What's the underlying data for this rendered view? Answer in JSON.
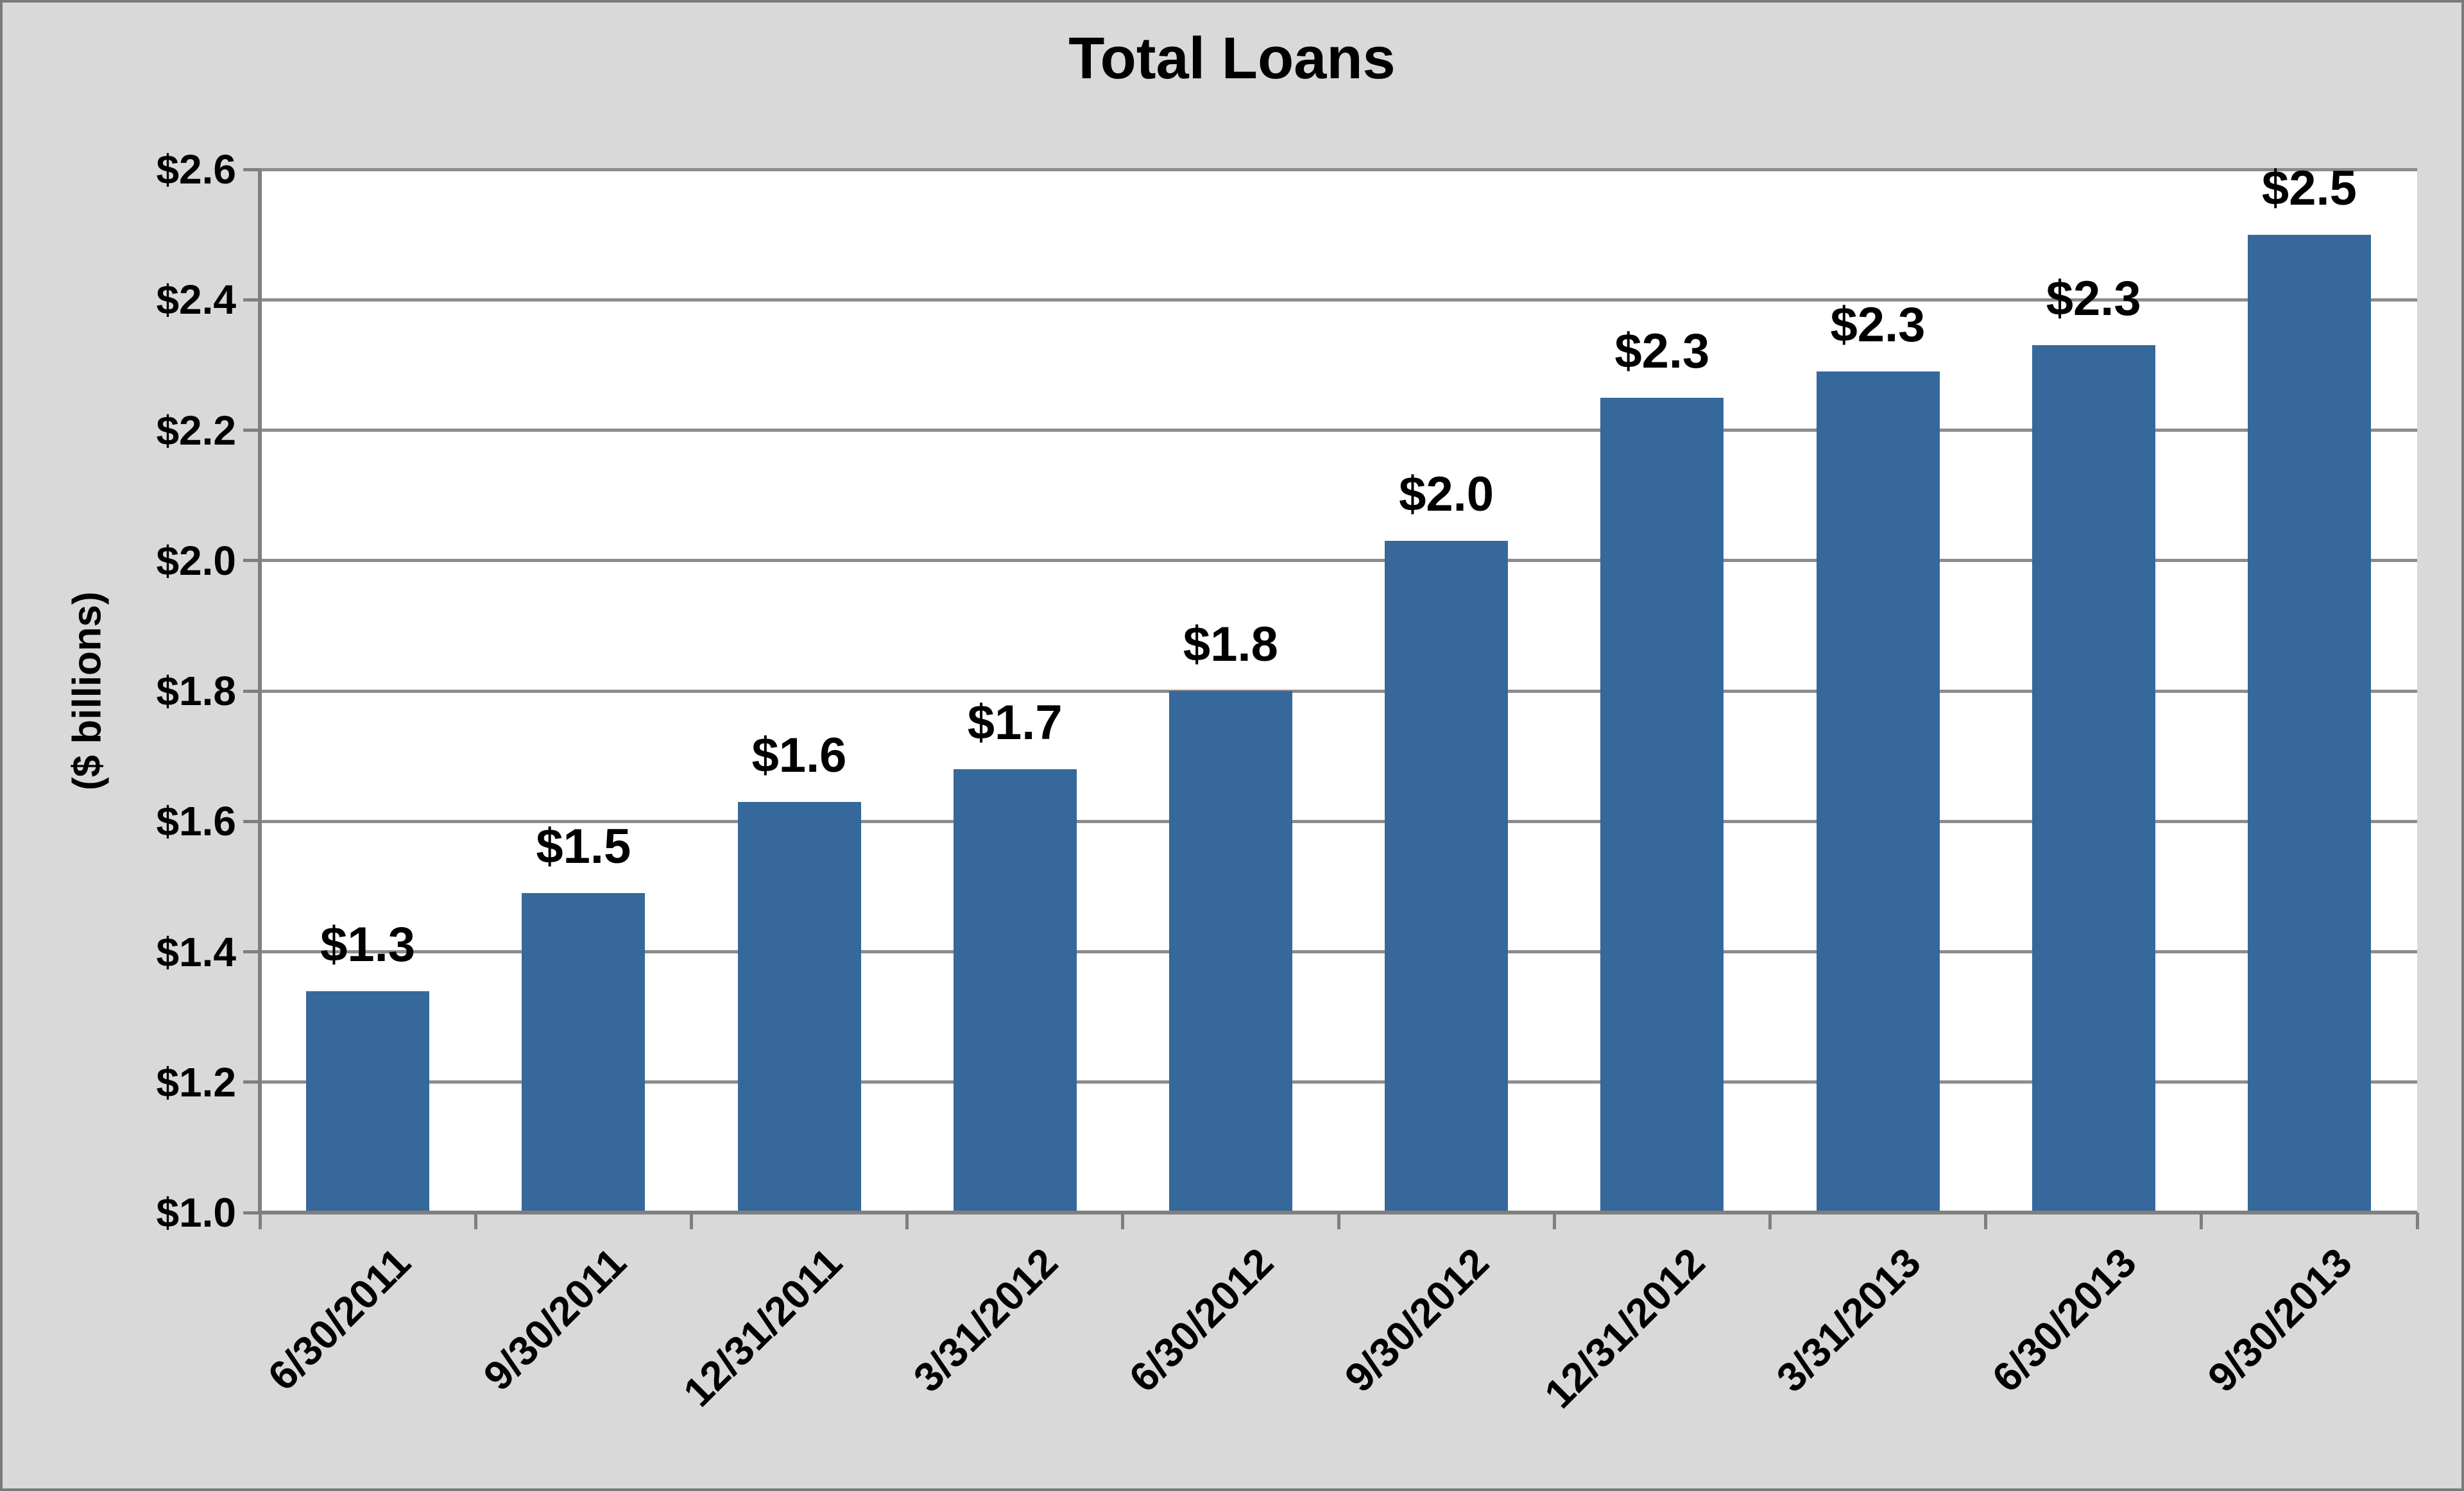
{
  "chart_data": {
    "type": "bar",
    "title": "Total Loans",
    "ylabel": "($ billions)",
    "xlabel": "",
    "categories": [
      "6/30/2011",
      "9/30/2011",
      "12/31/2011",
      "3/31/2012",
      "6/30/2012",
      "9/30/2012",
      "12/31/2012",
      "3/31/2013",
      "6/30/2013",
      "9/30/2013"
    ],
    "values": [
      1.34,
      1.49,
      1.63,
      1.68,
      1.8,
      2.03,
      2.25,
      2.29,
      2.33,
      2.5
    ],
    "data_labels": [
      "$1.3",
      "$1.5",
      "$1.6",
      "$1.7",
      "$1.8",
      "$2.0",
      "$2.3",
      "$2.3",
      "$2.3",
      "$2.5"
    ],
    "y_ticks": [
      "$1.0",
      "$1.2",
      "$1.4",
      "$1.6",
      "$1.8",
      "$2.0",
      "$2.2",
      "$2.4",
      "$2.6"
    ],
    "y_tick_values": [
      1.0,
      1.2,
      1.4,
      1.6,
      1.8,
      2.0,
      2.2,
      2.4,
      2.6
    ],
    "ylim": [
      1.0,
      2.6
    ],
    "grid": true,
    "legend": "none",
    "x_tick_rotation": 45,
    "bar_color": "#36689B",
    "gridline_color": "#8C8C8C",
    "axis_color": "#7F7F7F",
    "background_color": "#D9D9D9",
    "plot_background": "#FFFFFF",
    "border_color": "#7A7A7A",
    "text_color": "#000000"
  }
}
